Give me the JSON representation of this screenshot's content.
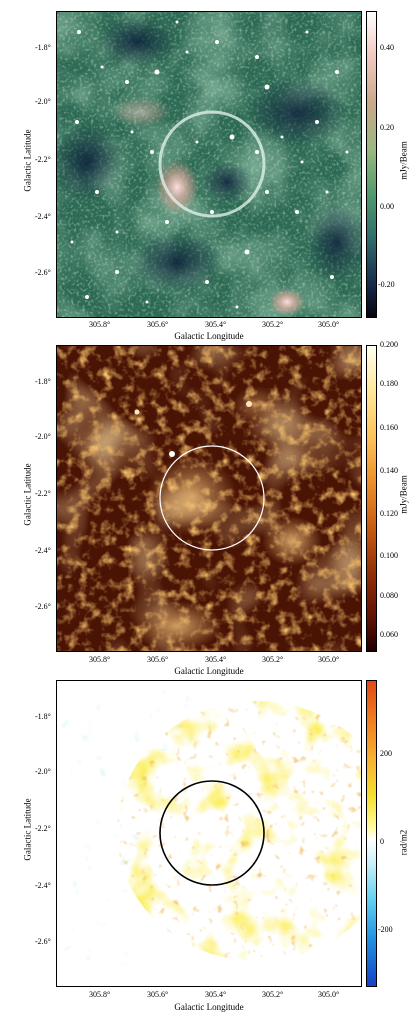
{
  "figure": {
    "panels": [
      {
        "id": "p1",
        "colormap": "cubehelix-green",
        "xlabel": "Galactic Longitude",
        "ylabel": "Galactic Latitude",
        "xticks": [
          "305.8°",
          "305.6°",
          "305.4°",
          "305.2°",
          "305.0°"
        ],
        "yticks": [
          "-1.8°",
          "-2.0°",
          "-2.2°",
          "-2.4°",
          "-2.6°"
        ],
        "cbar_label": "mJy/Beam",
        "cbar_ticks": [
          "0.40",
          "0.20",
          "0.00",
          "-0.20"
        ],
        "circle_color": "#d8e8e0"
      },
      {
        "id": "p2",
        "colormap": "afmhot",
        "xlabel": "Galactic Longitude",
        "ylabel": "Galactic Latitude",
        "xticks": [
          "305.8°",
          "305.6°",
          "305.4°",
          "305.2°",
          "305.0°"
        ],
        "yticks": [
          "-1.8°",
          "-2.0°",
          "-2.2°",
          "-2.4°",
          "-2.6°"
        ],
        "cbar_label": "mJy/Beam",
        "cbar_ticks": [
          "0.200",
          "0.180",
          "0.160",
          "0.140",
          "0.120",
          "0.100",
          "0.080",
          "0.060"
        ],
        "circle_color": "#ffffff"
      },
      {
        "id": "p3",
        "colormap": "rainbow-rm",
        "xlabel": "Galactic Longitude",
        "ylabel": "Galactic Latitude",
        "xticks": [
          "305.8°",
          "305.6°",
          "305.4°",
          "305.2°",
          "305.0°"
        ],
        "yticks": [
          "-1.8°",
          "-2.0°",
          "-2.2°",
          "-2.4°",
          "-2.6°"
        ],
        "cbar_label": "rad/m2",
        "cbar_ticks": [
          "200",
          "0",
          "-200"
        ],
        "circle_color": "#000000"
      }
    ]
  }
}
